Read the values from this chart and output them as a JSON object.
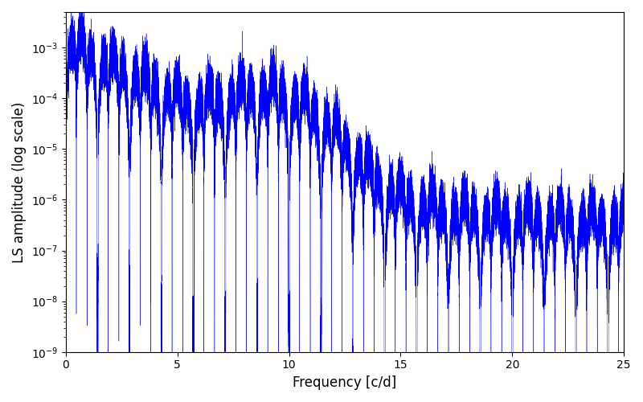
{
  "title": "",
  "xlabel": "Frequency [c/d]",
  "ylabel": "LS amplitude (log scale)",
  "xlim": [
    0,
    25
  ],
  "ylim": [
    1e-09,
    0.005
  ],
  "line_color": "#0000ff",
  "background_color": "#ffffff",
  "freq_max": 25.0,
  "n_points": 50000,
  "seed": 42,
  "xticks": [
    0,
    5,
    10,
    15,
    20,
    25
  ],
  "figsize": [
    8.0,
    5.0
  ],
  "dpi": 100
}
